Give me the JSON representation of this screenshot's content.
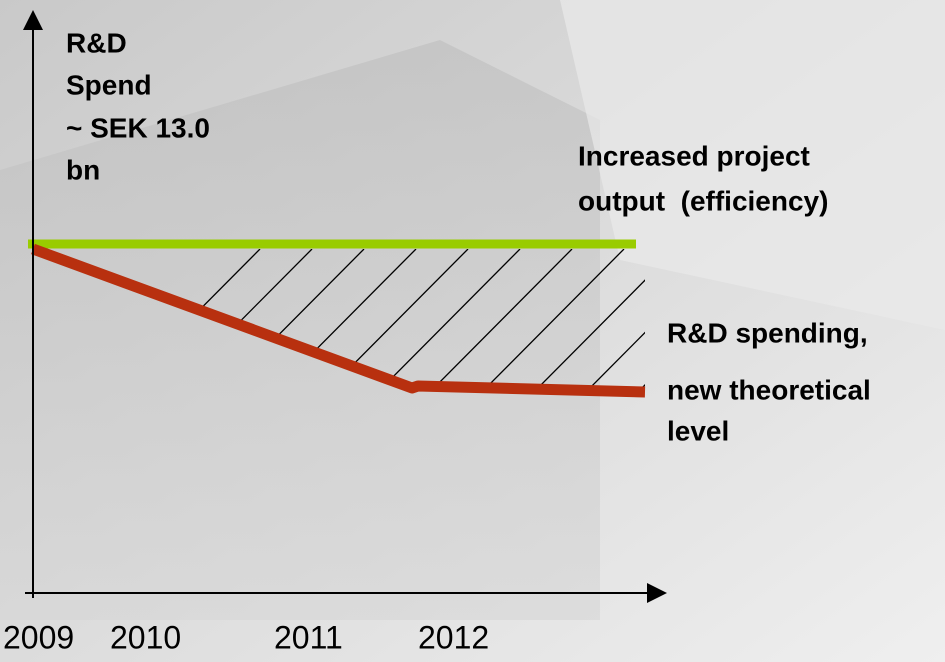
{
  "y_axis_label": {
    "lines": [
      "R&D",
      "Spend",
      "~ SEK 13.0",
      "bn"
    ]
  },
  "annotations": [
    {
      "lines": [
        "Increased project",
        "output  (efficiency)"
      ]
    },
    {
      "lines": [
        "R&D spending,",
        "new theoretical",
        "level"
      ]
    }
  ],
  "x_axis_labels": [
    "2009",
    "2010",
    "2011",
    "2012"
  ]
}
